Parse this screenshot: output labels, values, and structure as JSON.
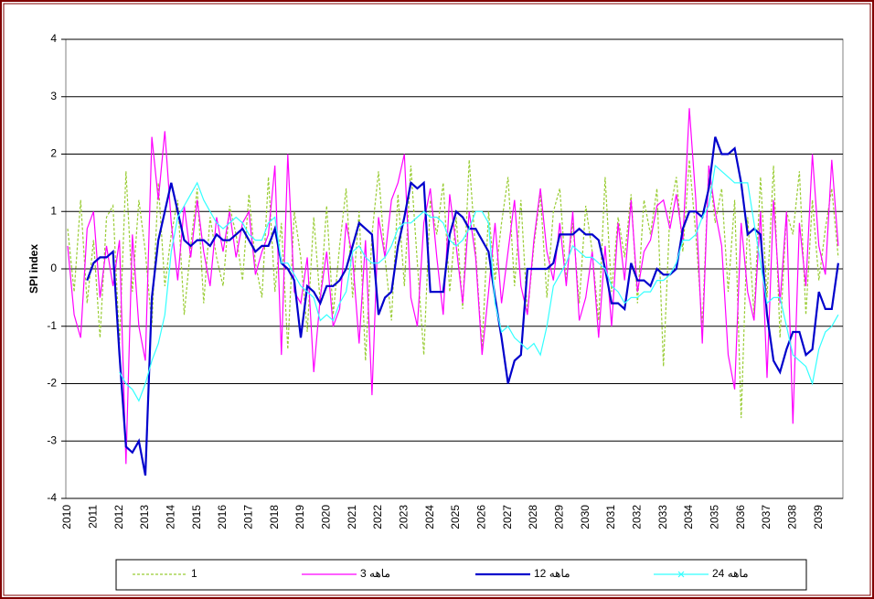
{
  "chart_data": {
    "type": "line",
    "y_label": "SPI index",
    "categories": [
      "2010",
      null,
      null,
      null,
      "2011",
      null,
      null,
      null,
      "2012",
      null,
      null,
      null,
      "2013",
      null,
      null,
      null,
      "2014",
      null,
      null,
      null,
      "2015",
      null,
      null,
      null,
      "2016",
      null,
      null,
      null,
      "2017",
      null,
      null,
      null,
      "2018",
      null,
      null,
      null,
      "2019",
      null,
      null,
      null,
      "2020",
      null,
      null,
      null,
      "2021",
      null,
      null,
      null,
      "2022",
      null,
      null,
      null,
      "2023",
      null,
      null,
      null,
      "2024",
      null,
      null,
      null,
      "2025",
      null,
      null,
      null,
      "2026",
      null,
      null,
      null,
      "2027",
      null,
      null,
      null,
      "2028",
      null,
      null,
      null,
      "2029",
      null,
      null,
      null,
      "2030",
      null,
      null,
      null,
      "2031",
      null,
      null,
      null,
      "2032",
      null,
      null,
      null,
      "2033",
      null,
      null,
      null,
      "2034",
      null,
      null,
      null,
      "2035",
      null,
      null,
      null,
      "2036",
      null,
      null,
      null,
      "2037",
      null,
      null,
      null,
      "2038",
      null,
      null,
      null,
      "2039",
      null,
      null,
      null
    ],
    "ylim": [
      -4,
      4
    ],
    "yticks": [
      -4,
      -3,
      -2,
      -1,
      0,
      1,
      2,
      3,
      4
    ],
    "grid": true,
    "series": [
      {
        "name": "1",
        "color": "#99cc33",
        "dash": true,
        "values": [
          0.7,
          -0.4,
          1.2,
          -0.6,
          0.5,
          -1.2,
          0.9,
          1.1,
          -1.3,
          1.7,
          -0.4,
          1.2,
          0.3,
          -1.0,
          1.5,
          -0.3,
          0.6,
          1.2,
          -0.8,
          0.4,
          1.4,
          -0.6,
          0.9,
          0.2,
          -0.3,
          1.1,
          0.6,
          -0.2,
          1.3,
          0.1,
          -0.5,
          1.6,
          -0.4,
          0.8,
          -1.4,
          1.0,
          0.2,
          -1.1,
          0.9,
          -0.6,
          1.1,
          -0.8,
          0.4,
          1.4,
          -0.5,
          1.0,
          -1.6,
          0.6,
          1.7,
          0.2,
          -0.9,
          1.3,
          -0.3,
          1.8,
          0.1,
          -1.5,
          1.2,
          0.6,
          1.5,
          -0.4,
          0.9,
          -0.7,
          1.9,
          0.3,
          -1.4,
          1.0,
          -0.2,
          0.8,
          1.6,
          -0.3,
          1.2,
          -0.8,
          0.4,
          1.3,
          -0.5,
          1.0,
          1.4,
          -0.2,
          0.8,
          -0.6,
          1.1,
          0.3,
          -0.9,
          1.6,
          -0.4,
          0.9,
          0.2,
          1.3,
          -0.6,
          1.2,
          0.6,
          1.4,
          -1.7,
          1.0,
          1.6,
          0.3,
          1.9,
          0.6,
          -1.0,
          1.8,
          0.8,
          1.4,
          -0.4,
          1.2,
          -2.6,
          0.9,
          -0.8,
          1.6,
          -0.5,
          1.8,
          -1.2,
          1.0,
          0.6,
          1.7,
          -0.8,
          1.2,
          -0.2,
          0.7,
          1.4,
          0.2
        ]
      },
      {
        "name": "ماهه 3",
        "color": "#ff00ff",
        "values": [
          0.4,
          -0.8,
          -1.2,
          0.7,
          1.0,
          -0.5,
          0.4,
          -0.3,
          0.5,
          -3.4,
          0.6,
          -1.0,
          -1.6,
          2.3,
          1.2,
          2.4,
          0.8,
          -0.2,
          1.1,
          0.2,
          1.2,
          0.3,
          -0.3,
          0.9,
          0.3,
          1.0,
          0.2,
          0.8,
          1.0,
          -0.1,
          0.3,
          0.6,
          1.8,
          -1.5,
          2.0,
          -0.4,
          -0.6,
          0.2,
          -1.8,
          -0.5,
          0.3,
          -1.0,
          -0.7,
          0.8,
          0.2,
          -1.3,
          0.5,
          -2.2,
          0.9,
          0.2,
          1.2,
          1.5,
          2.0,
          -0.5,
          -1.0,
          0.8,
          1.4,
          0.2,
          -0.8,
          1.3,
          0.4,
          -0.6,
          1.0,
          0.2,
          -1.5,
          -0.4,
          0.8,
          -0.6,
          0.3,
          1.2,
          -0.3,
          -0.8,
          0.5,
          1.4,
          0.3,
          -0.2,
          0.8,
          -0.3,
          1.0,
          -0.9,
          -0.5,
          0.3,
          -1.2,
          0.4,
          -1.0,
          0.8,
          -0.2,
          1.2,
          -0.4,
          0.3,
          0.5,
          1.1,
          1.2,
          0.7,
          1.3,
          0.5,
          2.8,
          1.2,
          -1.3,
          1.8,
          1.0,
          0.4,
          -1.5,
          -2.1,
          0.8,
          -0.4,
          -0.9,
          1.0,
          -1.9,
          1.2,
          -0.6,
          1.0,
          -2.7,
          0.8,
          -0.3,
          2.0,
          0.4,
          -0.1,
          1.9,
          0.4
        ]
      },
      {
        "name": "ماهه 12",
        "color": "#0000cc",
        "values": [
          null,
          null,
          null,
          -0.2,
          0.1,
          0.2,
          0.2,
          0.3,
          -1.5,
          -3.1,
          -3.2,
          -3.0,
          -3.6,
          -0.5,
          0.5,
          1.0,
          1.5,
          1.0,
          0.5,
          0.4,
          0.5,
          0.5,
          0.4,
          0.6,
          0.5,
          0.5,
          0.6,
          0.7,
          0.5,
          0.3,
          0.4,
          0.4,
          0.7,
          0.1,
          0.0,
          -0.2,
          -1.2,
          -0.3,
          -0.4,
          -0.6,
          -0.3,
          -0.3,
          -0.2,
          0.0,
          0.4,
          0.8,
          0.7,
          0.6,
          -0.8,
          -0.5,
          -0.4,
          0.4,
          0.9,
          1.5,
          1.4,
          1.5,
          -0.4,
          -0.4,
          -0.4,
          0.6,
          1.0,
          0.9,
          0.7,
          0.7,
          0.5,
          0.3,
          -0.5,
          -1.2,
          -2.0,
          -1.6,
          -1.5,
          0.0,
          0.0,
          0.0,
          0.0,
          0.1,
          0.6,
          0.6,
          0.6,
          0.7,
          0.6,
          0.6,
          0.5,
          0.0,
          -0.6,
          -0.6,
          -0.7,
          0.1,
          -0.2,
          -0.2,
          -0.3,
          0.0,
          -0.1,
          -0.1,
          0.0,
          0.7,
          1.0,
          1.0,
          0.9,
          1.4,
          2.3,
          2.0,
          2.0,
          2.1,
          1.5,
          0.6,
          0.7,
          0.6,
          -0.8,
          -1.6,
          -1.8,
          -1.4,
          -1.1,
          -1.1,
          -1.5,
          -1.4,
          -0.4,
          -0.7,
          -0.7,
          0.1
        ]
      },
      {
        "name": "ماهه 24",
        "color": "#33ffff",
        "values": [
          null,
          null,
          null,
          null,
          null,
          null,
          null,
          null,
          -1.8,
          -2.0,
          -2.1,
          -2.3,
          -2.0,
          -1.6,
          -1.3,
          -0.8,
          0.3,
          0.9,
          1.1,
          1.3,
          1.5,
          1.2,
          1.0,
          0.8,
          0.7,
          0.8,
          0.9,
          0.8,
          0.6,
          0.5,
          0.5,
          0.8,
          0.9,
          0.1,
          0.1,
          -0.1,
          -0.3,
          -0.4,
          -0.5,
          -0.9,
          -0.8,
          -0.9,
          -0.6,
          -0.4,
          0.3,
          0.4,
          0.2,
          0.1,
          0.1,
          0.2,
          0.4,
          0.7,
          0.8,
          0.8,
          0.9,
          1.0,
          0.9,
          0.9,
          0.8,
          0.5,
          0.4,
          0.5,
          0.7,
          1.0,
          1.0,
          0.8,
          -0.6,
          -1.1,
          -1.0,
          -1.2,
          -1.3,
          -1.4,
          -1.3,
          -1.5,
          -1.0,
          -0.3,
          -0.1,
          0.1,
          0.4,
          0.3,
          0.2,
          0.2,
          0.1,
          0.0,
          -0.3,
          -0.4,
          -0.6,
          -0.5,
          -0.5,
          -0.4,
          -0.4,
          -0.2,
          -0.2,
          -0.1,
          0.1,
          0.5,
          0.5,
          0.6,
          0.9,
          1.1,
          1.8,
          1.7,
          1.6,
          1.5,
          1.5,
          1.5,
          0.8,
          0.1,
          -0.6,
          -0.5,
          -0.5,
          -1.0,
          -1.5,
          -1.6,
          -1.7,
          -2.0,
          -1.4,
          -1.1,
          -1.0,
          -0.8
        ]
      }
    ]
  }
}
